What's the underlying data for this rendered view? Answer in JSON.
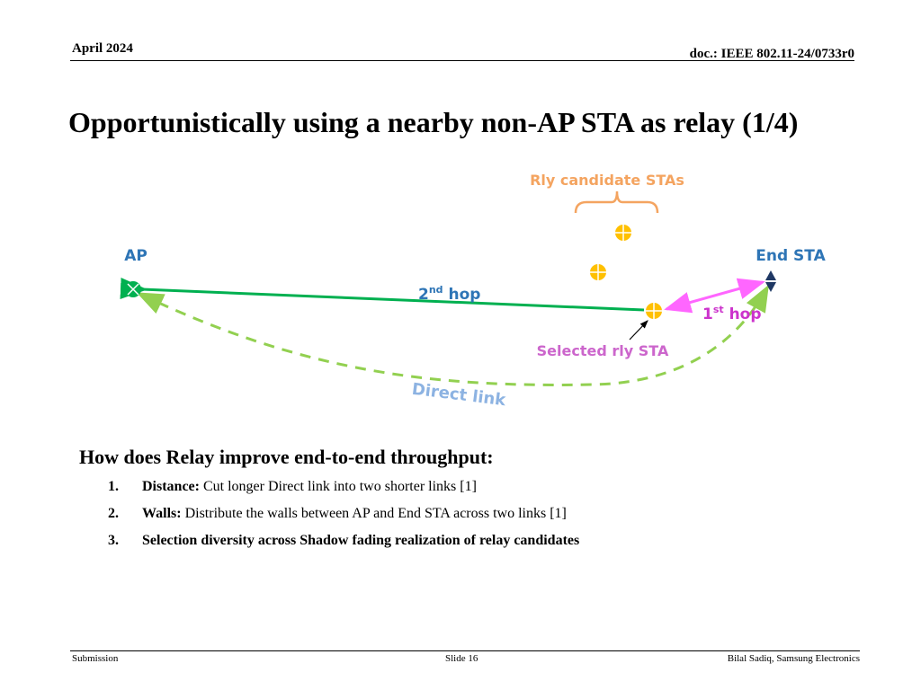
{
  "header": {
    "date": "April 2024",
    "doc": "doc.: IEEE 802.11-24/0733r0"
  },
  "title": "Opportunistically using a nearby non-AP STA as relay (1/4)",
  "diagram": {
    "rly_candidates": "Rly candidate STAs",
    "ap": "AP",
    "end_sta": "End STA",
    "second_hop_num": "2",
    "second_hop_sup": "nd",
    "second_hop_word": " hop",
    "first_hop_num": "1",
    "first_hop_sup": "st",
    "first_hop_word": " hop",
    "selected": "Selected rly STA",
    "direct": "Direct link",
    "colors": {
      "ap": "#00b050",
      "green": "#00b050",
      "dashed": "#92d050",
      "magenta": "#ff66ff",
      "orange": "#f4a460",
      "sta": "#ffc000",
      "endsta": "#1f3864",
      "label_blue": "#2e75b6"
    }
  },
  "section_title": "How does Relay improve end-to-end throughput:",
  "items": [
    {
      "num": "1.",
      "bold": "Distance:",
      "text": " Cut longer Direct link into two shorter links [1]"
    },
    {
      "num": "2.",
      "bold": "Walls:",
      "text": " Distribute the walls between AP and End STA across two links [1]"
    },
    {
      "num": "3.",
      "bold": "Selection diversity across Shadow fading realization of relay candidates",
      "text": ""
    }
  ],
  "footer": {
    "left": "Submission",
    "mid": "Slide 16",
    "right": "Bilal Sadiq, Samsung Electronics"
  }
}
